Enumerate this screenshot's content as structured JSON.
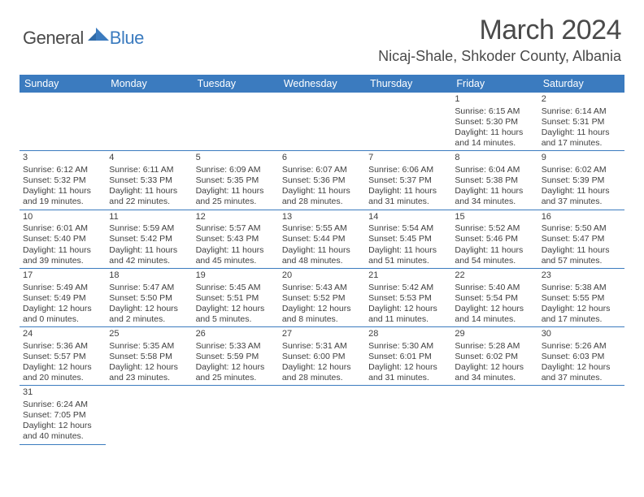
{
  "logo": {
    "general": "General",
    "blue": "Blue"
  },
  "title": "March 2024",
  "location": "Nicaj-Shale, Shkoder County, Albania",
  "colors": {
    "header_bg": "#3b7bbf",
    "header_text": "#ffffff",
    "border": "#3b7bbf",
    "body_text": "#3f3f3f",
    "logo_gray": "#4a4a4a",
    "logo_blue": "#3b7bbf"
  },
  "dayHeaders": [
    "Sunday",
    "Monday",
    "Tuesday",
    "Wednesday",
    "Thursday",
    "Friday",
    "Saturday"
  ],
  "weeks": [
    [
      null,
      null,
      null,
      null,
      null,
      {
        "n": "1",
        "sr": "Sunrise: 6:15 AM",
        "ss": "Sunset: 5:30 PM",
        "dl1": "Daylight: 11 hours",
        "dl2": "and 14 minutes."
      },
      {
        "n": "2",
        "sr": "Sunrise: 6:14 AM",
        "ss": "Sunset: 5:31 PM",
        "dl1": "Daylight: 11 hours",
        "dl2": "and 17 minutes."
      }
    ],
    [
      {
        "n": "3",
        "sr": "Sunrise: 6:12 AM",
        "ss": "Sunset: 5:32 PM",
        "dl1": "Daylight: 11 hours",
        "dl2": "and 19 minutes."
      },
      {
        "n": "4",
        "sr": "Sunrise: 6:11 AM",
        "ss": "Sunset: 5:33 PM",
        "dl1": "Daylight: 11 hours",
        "dl2": "and 22 minutes."
      },
      {
        "n": "5",
        "sr": "Sunrise: 6:09 AM",
        "ss": "Sunset: 5:35 PM",
        "dl1": "Daylight: 11 hours",
        "dl2": "and 25 minutes."
      },
      {
        "n": "6",
        "sr": "Sunrise: 6:07 AM",
        "ss": "Sunset: 5:36 PM",
        "dl1": "Daylight: 11 hours",
        "dl2": "and 28 minutes."
      },
      {
        "n": "7",
        "sr": "Sunrise: 6:06 AM",
        "ss": "Sunset: 5:37 PM",
        "dl1": "Daylight: 11 hours",
        "dl2": "and 31 minutes."
      },
      {
        "n": "8",
        "sr": "Sunrise: 6:04 AM",
        "ss": "Sunset: 5:38 PM",
        "dl1": "Daylight: 11 hours",
        "dl2": "and 34 minutes."
      },
      {
        "n": "9",
        "sr": "Sunrise: 6:02 AM",
        "ss": "Sunset: 5:39 PM",
        "dl1": "Daylight: 11 hours",
        "dl2": "and 37 minutes."
      }
    ],
    [
      {
        "n": "10",
        "sr": "Sunrise: 6:01 AM",
        "ss": "Sunset: 5:40 PM",
        "dl1": "Daylight: 11 hours",
        "dl2": "and 39 minutes."
      },
      {
        "n": "11",
        "sr": "Sunrise: 5:59 AM",
        "ss": "Sunset: 5:42 PM",
        "dl1": "Daylight: 11 hours",
        "dl2": "and 42 minutes."
      },
      {
        "n": "12",
        "sr": "Sunrise: 5:57 AM",
        "ss": "Sunset: 5:43 PM",
        "dl1": "Daylight: 11 hours",
        "dl2": "and 45 minutes."
      },
      {
        "n": "13",
        "sr": "Sunrise: 5:55 AM",
        "ss": "Sunset: 5:44 PM",
        "dl1": "Daylight: 11 hours",
        "dl2": "and 48 minutes."
      },
      {
        "n": "14",
        "sr": "Sunrise: 5:54 AM",
        "ss": "Sunset: 5:45 PM",
        "dl1": "Daylight: 11 hours",
        "dl2": "and 51 minutes."
      },
      {
        "n": "15",
        "sr": "Sunrise: 5:52 AM",
        "ss": "Sunset: 5:46 PM",
        "dl1": "Daylight: 11 hours",
        "dl2": "and 54 minutes."
      },
      {
        "n": "16",
        "sr": "Sunrise: 5:50 AM",
        "ss": "Sunset: 5:47 PM",
        "dl1": "Daylight: 11 hours",
        "dl2": "and 57 minutes."
      }
    ],
    [
      {
        "n": "17",
        "sr": "Sunrise: 5:49 AM",
        "ss": "Sunset: 5:49 PM",
        "dl1": "Daylight: 12 hours",
        "dl2": "and 0 minutes."
      },
      {
        "n": "18",
        "sr": "Sunrise: 5:47 AM",
        "ss": "Sunset: 5:50 PM",
        "dl1": "Daylight: 12 hours",
        "dl2": "and 2 minutes."
      },
      {
        "n": "19",
        "sr": "Sunrise: 5:45 AM",
        "ss": "Sunset: 5:51 PM",
        "dl1": "Daylight: 12 hours",
        "dl2": "and 5 minutes."
      },
      {
        "n": "20",
        "sr": "Sunrise: 5:43 AM",
        "ss": "Sunset: 5:52 PM",
        "dl1": "Daylight: 12 hours",
        "dl2": "and 8 minutes."
      },
      {
        "n": "21",
        "sr": "Sunrise: 5:42 AM",
        "ss": "Sunset: 5:53 PM",
        "dl1": "Daylight: 12 hours",
        "dl2": "and 11 minutes."
      },
      {
        "n": "22",
        "sr": "Sunrise: 5:40 AM",
        "ss": "Sunset: 5:54 PM",
        "dl1": "Daylight: 12 hours",
        "dl2": "and 14 minutes."
      },
      {
        "n": "23",
        "sr": "Sunrise: 5:38 AM",
        "ss": "Sunset: 5:55 PM",
        "dl1": "Daylight: 12 hours",
        "dl2": "and 17 minutes."
      }
    ],
    [
      {
        "n": "24",
        "sr": "Sunrise: 5:36 AM",
        "ss": "Sunset: 5:57 PM",
        "dl1": "Daylight: 12 hours",
        "dl2": "and 20 minutes."
      },
      {
        "n": "25",
        "sr": "Sunrise: 5:35 AM",
        "ss": "Sunset: 5:58 PM",
        "dl1": "Daylight: 12 hours",
        "dl2": "and 23 minutes."
      },
      {
        "n": "26",
        "sr": "Sunrise: 5:33 AM",
        "ss": "Sunset: 5:59 PM",
        "dl1": "Daylight: 12 hours",
        "dl2": "and 25 minutes."
      },
      {
        "n": "27",
        "sr": "Sunrise: 5:31 AM",
        "ss": "Sunset: 6:00 PM",
        "dl1": "Daylight: 12 hours",
        "dl2": "and 28 minutes."
      },
      {
        "n": "28",
        "sr": "Sunrise: 5:30 AM",
        "ss": "Sunset: 6:01 PM",
        "dl1": "Daylight: 12 hours",
        "dl2": "and 31 minutes."
      },
      {
        "n": "29",
        "sr": "Sunrise: 5:28 AM",
        "ss": "Sunset: 6:02 PM",
        "dl1": "Daylight: 12 hours",
        "dl2": "and 34 minutes."
      },
      {
        "n": "30",
        "sr": "Sunrise: 5:26 AM",
        "ss": "Sunset: 6:03 PM",
        "dl1": "Daylight: 12 hours",
        "dl2": "and 37 minutes."
      }
    ],
    [
      {
        "n": "31",
        "sr": "Sunrise: 6:24 AM",
        "ss": "Sunset: 7:05 PM",
        "dl1": "Daylight: 12 hours",
        "dl2": "and 40 minutes."
      },
      null,
      null,
      null,
      null,
      null,
      null
    ]
  ]
}
